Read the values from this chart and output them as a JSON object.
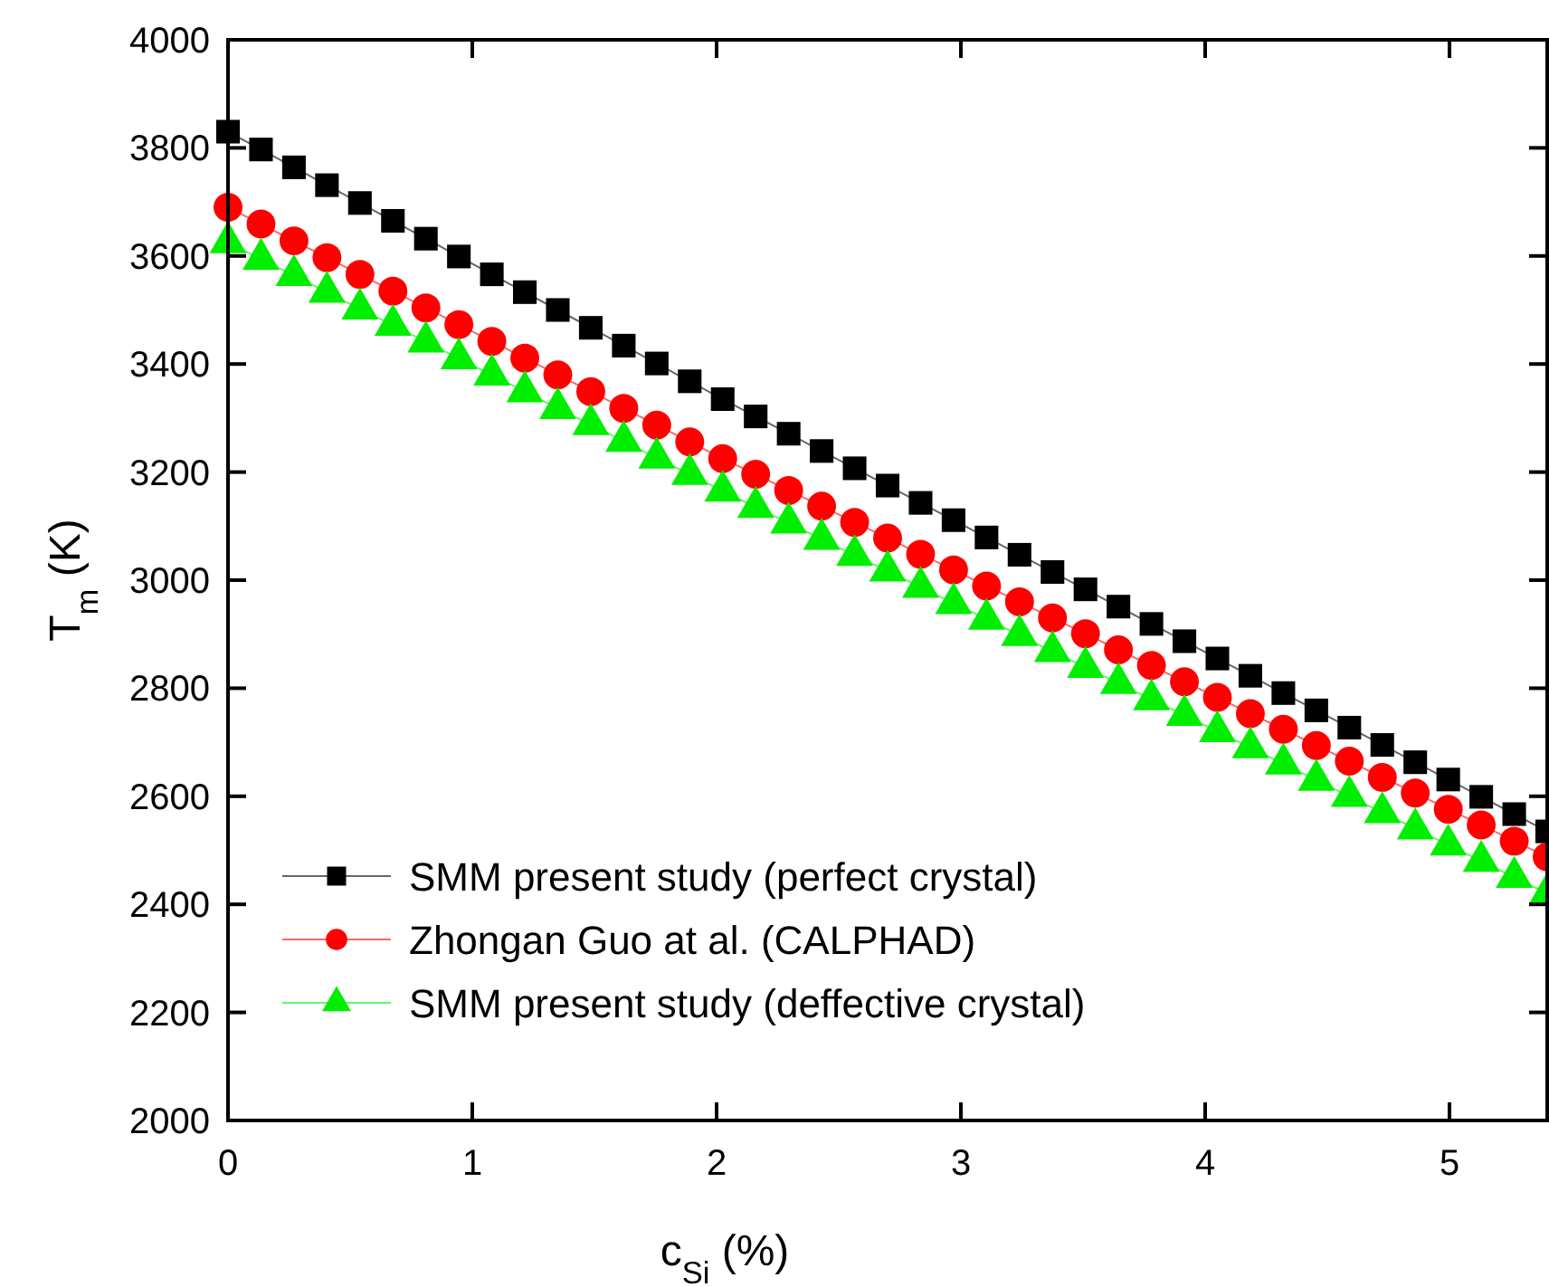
{
  "chart_data": {
    "type": "line",
    "xlabel": "c$_{Si}$ (%)",
    "ylabel": "T$_{m}$ (K)",
    "x": [
      0,
      0.135,
      0.27,
      0.405,
      0.54,
      0.675,
      0.81,
      0.945,
      1.08,
      1.215,
      1.35,
      1.485,
      1.62,
      1.755,
      1.89,
      2.025,
      2.16,
      2.295,
      2.43,
      2.565,
      2.7,
      2.835,
      2.97,
      3.105,
      3.24,
      3.375,
      3.51,
      3.645,
      3.78,
      3.915,
      4.05,
      4.185,
      4.32,
      4.455,
      4.59,
      4.725,
      4.86,
      4.995,
      5.13,
      5.265,
      5.4
    ],
    "series": [
      {
        "name": "SMM present study (perfect crystal)",
        "color": "#000000",
        "marker": "square",
        "values": [
          3830,
          3797,
          3764,
          3731,
          3698,
          3665,
          3632,
          3599,
          3566,
          3533,
          3500,
          3467,
          3434,
          3401,
          3368,
          3335,
          3303,
          3271,
          3239,
          3207,
          3175,
          3143,
          3111,
          3079,
          3047,
          3015,
          2983,
          2951,
          2919,
          2887,
          2855,
          2823,
          2791,
          2759,
          2727,
          2695,
          2663,
          2631,
          2599,
          2567,
          2535
        ]
      },
      {
        "name": "Zhongan Guo at al. (CALPHAD)",
        "color": "#ff0000",
        "marker": "circle",
        "values": [
          3690,
          3659,
          3628,
          3597,
          3566,
          3535,
          3504,
          3473,
          3442,
          3411,
          3380,
          3349,
          3318,
          3287,
          3256,
          3225,
          3196,
          3166,
          3137,
          3107,
          3078,
          3048,
          3019,
          2989,
          2960,
          2930,
          2901,
          2871,
          2842,
          2812,
          2783,
          2753,
          2724,
          2694,
          2665,
          2635,
          2606,
          2576,
          2547,
          2517,
          2488
        ]
      },
      {
        "name": "SMM present study (deffective crystal)",
        "color": "#00ee00",
        "marker": "triangle",
        "values": [
          3625,
          3594,
          3564,
          3533,
          3502,
          3472,
          3441,
          3410,
          3380,
          3349,
          3318,
          3288,
          3257,
          3226,
          3196,
          3165,
          3135,
          3106,
          3076,
          3046,
          3017,
          2987,
          2957,
          2928,
          2898,
          2868,
          2839,
          2809,
          2779,
          2750,
          2720,
          2690,
          2660,
          2630,
          2600,
          2570,
          2540,
          2510,
          2480,
          2450,
          2420
        ]
      }
    ],
    "xlim": [
      0,
      5.4
    ],
    "xticks": [
      0,
      1,
      2,
      3,
      4,
      5
    ],
    "ylim": [
      2000,
      4000
    ],
    "yticks": [
      2000,
      2200,
      2400,
      2600,
      2800,
      3000,
      3200,
      3400,
      3600,
      3800,
      4000
    ],
    "grid": false,
    "legend": "bottom left"
  }
}
